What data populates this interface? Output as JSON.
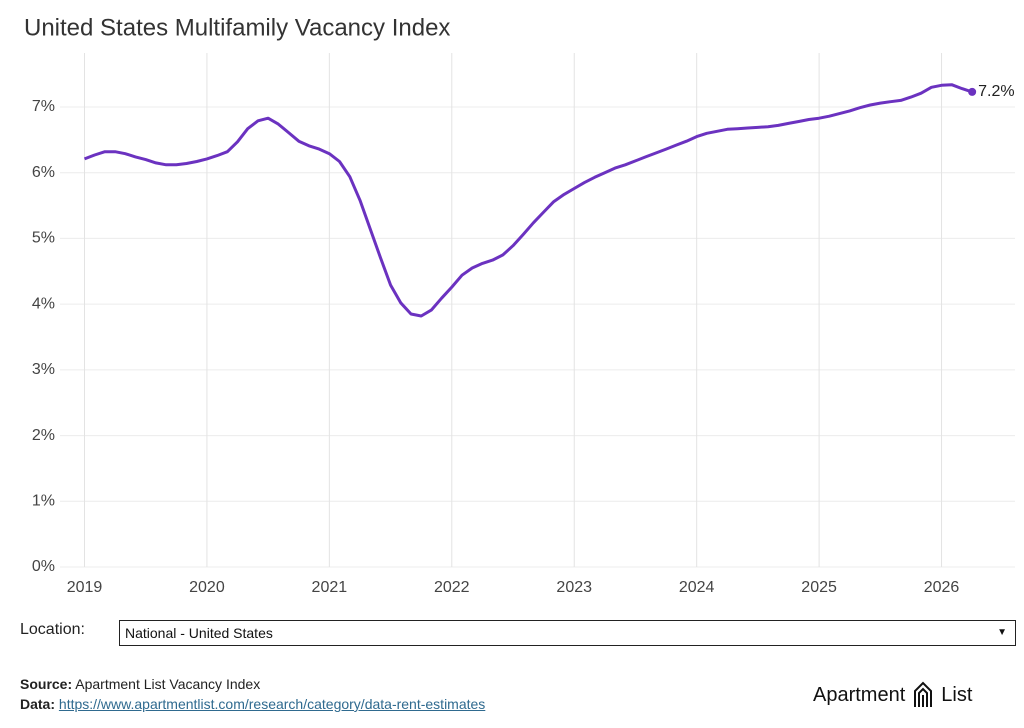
{
  "chart_data": {
    "type": "line",
    "title": "United States Multifamily Vacancy Index",
    "x": [
      2019,
      2019.083,
      2019.167,
      2019.25,
      2019.333,
      2019.417,
      2019.5,
      2019.583,
      2019.667,
      2019.75,
      2019.833,
      2019.917,
      2020,
      2020.083,
      2020.167,
      2020.25,
      2020.333,
      2020.417,
      2020.5,
      2020.583,
      2020.667,
      2020.75,
      2020.833,
      2020.917,
      2021,
      2021.083,
      2021.167,
      2021.25,
      2021.333,
      2021.417,
      2021.5,
      2021.583,
      2021.667,
      2021.75,
      2021.833,
      2021.917,
      2022,
      2022.083,
      2022.167,
      2022.25,
      2022.333,
      2022.417,
      2022.5,
      2022.583,
      2022.667,
      2022.75,
      2022.833,
      2022.917,
      2023,
      2023.083,
      2023.167,
      2023.25,
      2023.333,
      2023.417,
      2023.5,
      2023.583,
      2023.667,
      2023.75,
      2023.833,
      2023.917,
      2024,
      2024.083,
      2024.167,
      2024.25,
      2024.333,
      2024.417,
      2024.5,
      2024.583,
      2024.667,
      2024.75,
      2024.833,
      2024.917,
      2025,
      2025.083,
      2025.167,
      2025.25,
      2025.333,
      2025.417,
      2025.5,
      2025.583,
      2025.667,
      2025.75,
      2025.833,
      2025.917,
      2026,
      2026.083,
      2026.167,
      2026.25
    ],
    "series": [
      {
        "color": "#6b32c0",
        "values": [
          6.21,
          6.27,
          6.32,
          6.32,
          6.29,
          6.24,
          6.2,
          6.15,
          6.12,
          6.12,
          6.14,
          6.17,
          6.21,
          6.26,
          6.32,
          6.47,
          6.67,
          6.79,
          6.83,
          6.74,
          6.61,
          6.48,
          6.41,
          6.36,
          6.29,
          6.17,
          5.94,
          5.58,
          5.15,
          4.71,
          4.29,
          4.02,
          3.85,
          3.82,
          3.91,
          4.09,
          4.26,
          4.44,
          4.55,
          4.62,
          4.67,
          4.75,
          4.89,
          5.06,
          5.24,
          5.4,
          5.56,
          5.67,
          5.76,
          5.85,
          5.93,
          6.0,
          6.07,
          6.12,
          6.18,
          6.24,
          6.3,
          6.36,
          6.42,
          6.48,
          6.55,
          6.6,
          6.63,
          6.66,
          6.67,
          6.68,
          6.69,
          6.7,
          6.72,
          6.75,
          6.78,
          6.81,
          6.83,
          6.86,
          6.9,
          6.94,
          6.99,
          7.03,
          7.06,
          7.08,
          7.1,
          7.15,
          7.21,
          7.3,
          7.33,
          7.34,
          7.28,
          7.23
        ],
        "value_labels": [
          null,
          null,
          null,
          null,
          null,
          null,
          null,
          null,
          null,
          null,
          null,
          null,
          null,
          null,
          null,
          null,
          null,
          null,
          null,
          null,
          null,
          null,
          null,
          null,
          null,
          null,
          null,
          null,
          null,
          null,
          null,
          null,
          null,
          null,
          null,
          null,
          null,
          null,
          null,
          null,
          null,
          null,
          null,
          null,
          null,
          null,
          null,
          null,
          null,
          null,
          null,
          null,
          null,
          null,
          null,
          null,
          null,
          null,
          null,
          null,
          null,
          null,
          null,
          null,
          null,
          null,
          null,
          null,
          null,
          null,
          null,
          null,
          null,
          null,
          null,
          null,
          null,
          null,
          null,
          null,
          null,
          null,
          null,
          null,
          null,
          null,
          null,
          "7.2%"
        ]
      }
    ],
    "xlim": [
      2018.8,
      2026.6
    ],
    "xticks": [
      2019,
      2020,
      2021,
      2022,
      2023,
      2024,
      2025,
      2026
    ],
    "ylim": [
      0,
      7.7
    ],
    "yticks": [
      {
        "value": 0,
        "label": "0%"
      },
      {
        "value": 1,
        "label": "1%"
      },
      {
        "value": 2,
        "label": "2%"
      },
      {
        "value": 3,
        "label": "3%"
      },
      {
        "value": 4,
        "label": "4%"
      },
      {
        "value": 5,
        "label": "5%"
      },
      {
        "value": 6,
        "label": "6%"
      },
      {
        "value": 7,
        "label": "7%"
      }
    ],
    "grid": true
  },
  "controls": {
    "location_label": "Location:",
    "location_value": "National - United States"
  },
  "footer": {
    "source_label": "Source:",
    "source_text": "Apartment List Vacancy Index",
    "data_label": "Data:",
    "data_link": "https://www.apartmentlist.com/research/category/data-rent-estimates"
  },
  "logo": {
    "left": "Apartment",
    "right": "List"
  }
}
